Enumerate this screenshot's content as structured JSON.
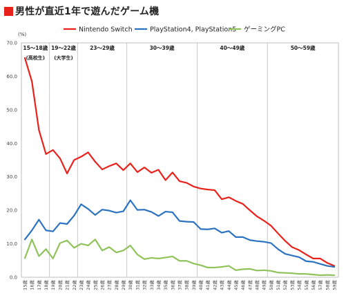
{
  "title": "男性が直近1年で遊んだゲーム機",
  "colors": {
    "title_marker": "#e8211b",
    "nintendo": "#e8211b",
    "playstation": "#2b73c0",
    "pc": "#8fc35a"
  },
  "chart_data": {
    "type": "line",
    "ylabel": "(%)",
    "ylim": [
      0,
      70
    ],
    "yticks": [
      "70.0",
      "60.0",
      "50.0",
      "40.0",
      "30.0",
      "20.0",
      "10.0",
      "0.0"
    ],
    "grid": "vertical dividers between age groups",
    "legend_position": "top",
    "x": [
      "15歳",
      "16歳",
      "17歳",
      "18歳",
      "19歳",
      "20歳",
      "21歳",
      "22歳",
      "23歳",
      "24歳",
      "25歳",
      "26歳",
      "27歳",
      "28歳",
      "29歳",
      "30歳",
      "31歳",
      "32歳",
      "33歳",
      "34歳",
      "35歳",
      "36歳",
      "37歳",
      "38歳",
      "39歳",
      "40歳",
      "41歳",
      "42歳",
      "43歳",
      "44歳",
      "45歳",
      "46歳",
      "47歳",
      "48歳",
      "49歳",
      "50歳",
      "51歳",
      "52歳",
      "53歳",
      "54歳",
      "55歳",
      "56歳",
      "57歳",
      "58歳",
      "59歳"
    ],
    "age_groups": [
      {
        "label": "15〜18歳",
        "sublabel": "(高校生)"
      },
      {
        "label": "19〜22歳",
        "sublabel": "(大学生)"
      },
      {
        "label": "23〜29歳",
        "sublabel": ""
      },
      {
        "label": "30〜39歳",
        "sublabel": ""
      },
      {
        "label": "40〜49歳",
        "sublabel": ""
      },
      {
        "label": "50〜59歳",
        "sublabel": ""
      }
    ],
    "series": [
      {
        "name": "Nintendo Switch",
        "values": [
          65.5,
          58.5,
          44,
          36.8,
          38,
          35.5,
          31,
          35,
          36,
          37.3,
          34.5,
          32.2,
          33.2,
          34,
          32,
          34,
          31.4,
          32.8,
          31.2,
          32.1,
          29,
          31.3,
          28.7,
          28.2,
          27.1,
          26.5,
          26.2,
          26,
          23.3,
          23.9,
          22.8,
          21.9,
          20,
          18.2,
          16.9,
          15.4,
          13.1,
          10.9,
          9,
          8.1,
          6.8,
          5.6,
          5.6,
          4.3,
          3.4
        ]
      },
      {
        "name": "PlayStation4, PlayStation5",
        "values": [
          11.3,
          14,
          17.2,
          14,
          13.7,
          16.2,
          15.9,
          18.4,
          21.8,
          20.4,
          18.6,
          20.2,
          19.9,
          19.3,
          19.7,
          23,
          20.1,
          20.2,
          19.5,
          18.3,
          19.6,
          19.4,
          16.8,
          16.6,
          16.5,
          14.4,
          14.3,
          14.6,
          13.3,
          13.8,
          12,
          12,
          11.1,
          10.8,
          10.6,
          10.2,
          8.4,
          7,
          6.5,
          6,
          4.8,
          4.6,
          4,
          3.4,
          3.1
        ]
      },
      {
        "name": "ゲーミングPC",
        "values": [
          5.7,
          11.3,
          6.3,
          8.4,
          5.6,
          10.2,
          11,
          8.8,
          10,
          9.5,
          11.3,
          8,
          9,
          7.4,
          8,
          9.5,
          6.8,
          5.4,
          5.8,
          5.6,
          5.9,
          6.2,
          4.9,
          4.9,
          4.1,
          3.6,
          2.9,
          2.9,
          3.1,
          3.4,
          2.1,
          2.4,
          2.5,
          2,
          2.1,
          1.9,
          1.4,
          1.3,
          1.2,
          1,
          1,
          0.8,
          0.6,
          0.7,
          0.6
        ]
      }
    ]
  }
}
